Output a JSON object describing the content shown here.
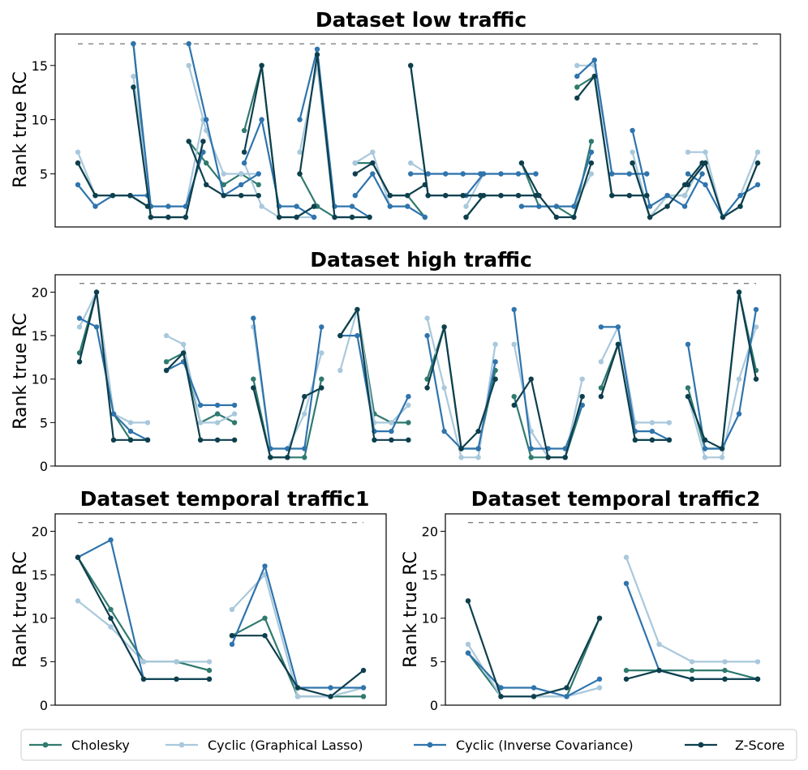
{
  "colors": {
    "Cholesky": "#2f7a6e",
    "Cyclic (Graphical Lasso)": "#a9c8dc",
    "Cyclic (Inverse Covariance)": "#2f74ad",
    "Z-Score": "#0e3f4d"
  },
  "legend": [
    "Cholesky",
    "Cyclic (Graphical Lasso)",
    "Cyclic (Inverse Covariance)",
    "Z-Score"
  ],
  "chart_data": [
    {
      "type": "line",
      "title": "Dataset low traffic",
      "ylabel": "Rank true RC",
      "ylim": [
        0.1,
        17.9
      ],
      "yticks": [
        5,
        10,
        15
      ],
      "reference_line": 17,
      "groups": 12,
      "points_per_group": 5,
      "series": [
        {
          "name": "Cholesky",
          "groups": [
            [
              6,
              3,
              3,
              3,
              2
            ],
            [
              17,
              1,
              1,
              1,
              8
            ],
            [
              8,
              6,
              4,
              5,
              4
            ],
            [
              9,
              15,
              1,
              1,
              2
            ],
            [
              5,
              2,
              1,
              1,
              1
            ],
            [
              6,
              6,
              3,
              3,
              1
            ],
            [
              15,
              3,
              3,
              3,
              3
            ],
            [
              1,
              3,
              3,
              3,
              3
            ],
            [
              6,
              2,
              2,
              1,
              8
            ],
            [
              13,
              14,
              3,
              3,
              3
            ],
            [
              6,
              1,
              3,
              3,
              6
            ],
            [
              4,
              6,
              1,
              2,
              6
            ]
          ]
        },
        {
          "name": "Cyclic (Graphical Lasso)",
          "groups": [
            [
              7,
              3,
              3,
              3,
              3
            ],
            [
              14,
              2,
              2,
              2,
              10
            ],
            [
              15,
              9,
              5,
              5,
              5
            ],
            [
              6,
              2,
              1,
              1,
              1
            ],
            [
              7,
              15,
              1,
              1,
              1
            ],
            [
              6,
              7,
              2,
              2,
              1
            ],
            [
              6,
              5,
              5,
              5,
              5
            ],
            [
              2,
              5,
              5,
              5,
              5
            ],
            [
              2,
              2,
              2,
              2,
              5
            ],
            [
              15,
              15,
              5,
              5,
              5
            ],
            [
              7,
              1,
              3,
              3,
              6
            ],
            [
              7,
              7,
              1,
              3,
              7
            ]
          ]
        },
        {
          "name": "Cyclic (Inverse Covariance)",
          "groups": [
            [
              4,
              2,
              3,
              3,
              3
            ],
            [
              17,
              2,
              2,
              2,
              7
            ],
            [
              17,
              10,
              3,
              4,
              5
            ],
            [
              6,
              10,
              2,
              2,
              1
            ],
            [
              10,
              16.5,
              2,
              2,
              1
            ],
            [
              3,
              5,
              2,
              2,
              1
            ],
            [
              5,
              5,
              5,
              5,
              5
            ],
            [
              3,
              5,
              5,
              5,
              5
            ],
            [
              2,
              2,
              2,
              2,
              7
            ],
            [
              14,
              15.5,
              5,
              5,
              5
            ],
            [
              9,
              2,
              3,
              2,
              5
            ],
            [
              5,
              4,
              1,
              3,
              4
            ]
          ]
        },
        {
          "name": "Z-Score",
          "groups": [
            [
              6,
              3,
              3,
              3,
              2
            ],
            [
              13,
              1,
              1,
              1,
              8
            ],
            [
              8,
              4,
              3,
              3,
              3
            ],
            [
              7,
              15,
              1,
              1,
              2
            ],
            [
              5,
              16,
              1,
              1,
              1
            ],
            [
              5,
              6,
              3,
              3,
              4
            ],
            [
              15,
              3,
              3,
              3,
              3
            ],
            [
              1,
              3,
              3,
              3,
              3
            ],
            [
              6,
              3,
              1,
              1,
              6
            ],
            [
              12,
              14,
              3,
              3,
              3
            ],
            [
              6,
              1,
              2,
              4,
              6
            ],
            [
              4,
              6,
              1,
              2,
              6
            ]
          ]
        }
      ]
    },
    {
      "type": "line",
      "title": "Dataset high traffic",
      "ylabel": "Rank true RC",
      "ylim": [
        0,
        22
      ],
      "yticks": [
        0,
        5,
        10,
        15,
        20
      ],
      "reference_line": 21,
      "groups": 8,
      "points_per_group": 5,
      "series": [
        {
          "name": "Cholesky",
          "groups": [
            [
              13,
              20,
              6,
              3,
              3
            ],
            [
              12,
              13,
              5,
              6,
              5
            ],
            [
              10,
              1,
              1,
              1,
              10
            ],
            [
              15,
              18,
              6,
              5,
              5
            ],
            [
              10,
              16,
              2,
              2,
              11
            ],
            [
              8,
              1,
              1,
              1,
              7
            ],
            [
              9,
              14,
              3,
              3,
              3
            ],
            [
              9,
              2,
              2,
              20,
              11
            ]
          ]
        },
        {
          "name": "Cyclic (Graphical Lasso)",
          "groups": [
            [
              16,
              20,
              6,
              5,
              5
            ],
            [
              15,
              14,
              5,
              5,
              6
            ],
            [
              16,
              2,
              2,
              6,
              13
            ],
            [
              11,
              18,
              5,
              5,
              7
            ],
            [
              17,
              9,
              1,
              1,
              14
            ],
            [
              14,
              4,
              1,
              1,
              10
            ],
            [
              12,
              16,
              5,
              5,
              5
            ],
            [
              8,
              1,
              1,
              10,
              16
            ]
          ]
        },
        {
          "name": "Cyclic (Inverse Covariance)",
          "groups": [
            [
              17,
              16,
              6,
              4,
              3
            ],
            [
              11,
              12,
              7,
              7,
              7
            ],
            [
              17,
              2,
              2,
              2,
              16
            ],
            [
              15,
              15,
              4,
              4,
              8
            ],
            [
              15,
              4,
              2,
              2,
              12
            ],
            [
              18,
              2,
              2,
              2,
              7
            ],
            [
              16,
              16,
              4,
              4,
              3
            ],
            [
              14,
              2,
              2,
              6,
              18
            ]
          ]
        },
        {
          "name": "Z-Score",
          "groups": [
            [
              12,
              20,
              3,
              3,
              3
            ],
            [
              11,
              13,
              3,
              3,
              3
            ],
            [
              9,
              1,
              1,
              8,
              9
            ],
            [
              15,
              18,
              3,
              3,
              3
            ],
            [
              9,
              16,
              2,
              4,
              10
            ],
            [
              7,
              10,
              1,
              1,
              8
            ],
            [
              8,
              14,
              3,
              3,
              3
            ],
            [
              8,
              3,
              2,
              20,
              10
            ]
          ]
        }
      ]
    },
    {
      "type": "line",
      "title": "Dataset temporal traffic1",
      "ylabel": "Rank true RC",
      "ylim": [
        0,
        22
      ],
      "yticks": [
        0,
        5,
        10,
        15,
        20
      ],
      "reference_line": 21,
      "groups": 2,
      "points_per_group": 5,
      "series": [
        {
          "name": "Cholesky",
          "groups": [
            [
              17,
              11,
              5,
              5,
              4
            ],
            [
              8,
              10,
              1,
              1,
              1
            ]
          ]
        },
        {
          "name": "Cyclic (Graphical Lasso)",
          "groups": [
            [
              12,
              9,
              5,
              5,
              5
            ],
            [
              11,
              15,
              1,
              1,
              2
            ]
          ]
        },
        {
          "name": "Cyclic (Inverse Covariance)",
          "groups": [
            [
              17,
              19,
              3,
              3,
              3
            ],
            [
              7,
              16,
              2,
              2,
              2
            ]
          ]
        },
        {
          "name": "Z-Score",
          "groups": [
            [
              17,
              10,
              3,
              3,
              3
            ],
            [
              8,
              8,
              2,
              1,
              4
            ]
          ]
        }
      ]
    },
    {
      "type": "line",
      "title": "Dataset temporal traffic2",
      "ylabel": "Rank true RC",
      "ylim": [
        0,
        22
      ],
      "yticks": [
        0,
        5,
        10,
        15,
        20
      ],
      "reference_line": 21,
      "groups": 2,
      "points_per_group": 5,
      "series": [
        {
          "name": "Cholesky",
          "groups": [
            [
              6,
              1,
              1,
              1,
              10
            ],
            [
              4,
              4,
              4,
              4,
              3
            ]
          ]
        },
        {
          "name": "Cyclic (Graphical Lasso)",
          "groups": [
            [
              7,
              1,
              1,
              1,
              2
            ],
            [
              17,
              7,
              5,
              5,
              5
            ]
          ]
        },
        {
          "name": "Cyclic (Inverse Covariance)",
          "groups": [
            [
              6,
              2,
              2,
              1,
              3
            ],
            [
              14,
              4,
              3,
              3,
              3
            ]
          ]
        },
        {
          "name": "Z-Score",
          "groups": [
            [
              12,
              1,
              1,
              2,
              10
            ],
            [
              3,
              4,
              3,
              3,
              3
            ]
          ]
        }
      ]
    }
  ]
}
